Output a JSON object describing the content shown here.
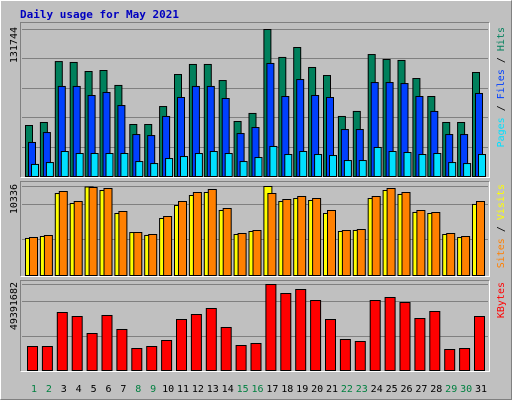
{
  "title": "Daily usage for May 2021",
  "legend_separator": "/",
  "chart_data": [
    {
      "type": "bar",
      "ylim": [
        0,
        131744
      ],
      "yticks": [
        131744
      ],
      "series": [
        {
          "name": "Hits",
          "color": "#00805c",
          "values": [
            45700,
            48400,
            103000,
            102200,
            94100,
            95000,
            81600,
            46600,
            46600,
            62700,
            91400,
            100400,
            100400,
            86000,
            49300,
            56500,
            131744,
            106700,
            115600,
            97700,
            90500,
            53800,
            58300,
            109300,
            104900,
            104000,
            87800,
            71700,
            48400,
            48400,
            93200
          ]
        },
        {
          "name": "Files",
          "color": "#0040ff",
          "values": [
            30500,
            39400,
            80700,
            80700,
            72600,
            75300,
            63600,
            37600,
            36700,
            53800,
            70800,
            80700,
            80700,
            69900,
            38500,
            43900,
            101300,
            71700,
            86900,
            72600,
            70800,
            42100,
            42100,
            84200,
            84200,
            83300,
            71700,
            58300,
            37600,
            37600,
            74400
          ]
        },
        {
          "name": "Pages",
          "color": "#00e0ff",
          "values": [
            10800,
            12500,
            22400,
            20600,
            20600,
            20600,
            20600,
            13400,
            11600,
            16100,
            17900,
            20600,
            22400,
            20600,
            13400,
            17000,
            26900,
            19700,
            22400,
            19700,
            18800,
            14300,
            14300,
            26000,
            22400,
            21500,
            19700,
            20600,
            12500,
            11600,
            19700
          ]
        }
      ]
    },
    {
      "type": "bar",
      "ylim": [
        0,
        10336
      ],
      "yticks": [
        10336
      ],
      "series": [
        {
          "name": "Visits",
          "color": "#ffff00",
          "values": [
            4300,
            4530,
            9520,
            8360,
            10280,
            9870,
            7200,
            4990,
            4650,
            6620,
            8130,
            9290,
            9640,
            7550,
            4760,
            5110,
            10336,
            8590,
            8940,
            8710,
            7200,
            5110,
            5230,
            8940,
            9870,
            9410,
            7320,
            7200,
            4760,
            4410,
            8250
          ]
        },
        {
          "name": "Sites",
          "color": "#ff8000",
          "values": [
            4413,
            4645,
            9755,
            8594,
            10220,
            10104,
            7433,
            4994,
            4761,
            6852,
            8594,
            9639,
            9988,
            7781,
            4878,
            5226,
            9523,
            8826,
            9175,
            8942,
            7549,
            5226,
            5342,
            9175,
            10104,
            9639,
            7549,
            7316,
            4878,
            4529,
            8594
          ]
        }
      ]
    },
    {
      "type": "bar",
      "ylim": [
        0,
        49391682
      ],
      "yticks": [
        49391682
      ],
      "categories": [
        "1",
        "2",
        "3",
        "4",
        "5",
        "6",
        "7",
        "8",
        "9",
        "10",
        "11",
        "12",
        "13",
        "14",
        "15",
        "16",
        "17",
        "18",
        "19",
        "20",
        "21",
        "22",
        "23",
        "24",
        "25",
        "26",
        "27",
        "28",
        "29",
        "30",
        "31"
      ],
      "category_colors": [
        "#008040",
        "#008040",
        "#000000",
        "#000000",
        "#000000",
        "#000000",
        "#000000",
        "#008040",
        "#008040",
        "#000000",
        "#000000",
        "#000000",
        "#000000",
        "#000000",
        "#008040",
        "#008040",
        "#000000",
        "#000000",
        "#000000",
        "#000000",
        "#000000",
        "#008040",
        "#008040",
        "#000000",
        "#000000",
        "#000000",
        "#000000",
        "#000000",
        "#008040",
        "#008040",
        "#000000"
      ],
      "series": [
        {
          "name": "KBytes",
          "color": "#ff0000",
          "values": [
            13780000,
            13780000,
            33310000,
            31010000,
            21250000,
            31590000,
            23550000,
            12630000,
            13780000,
            17230000,
            29290000,
            32160000,
            35610000,
            24700000,
            14360000,
            15510000,
            49391682,
            44220000,
            46520000,
            40200000,
            29290000,
            17800000,
            16660000,
            40200000,
            41930000,
            39050000,
            29860000,
            33890000,
            12060000,
            12630000,
            31010000
          ]
        }
      ]
    }
  ]
}
